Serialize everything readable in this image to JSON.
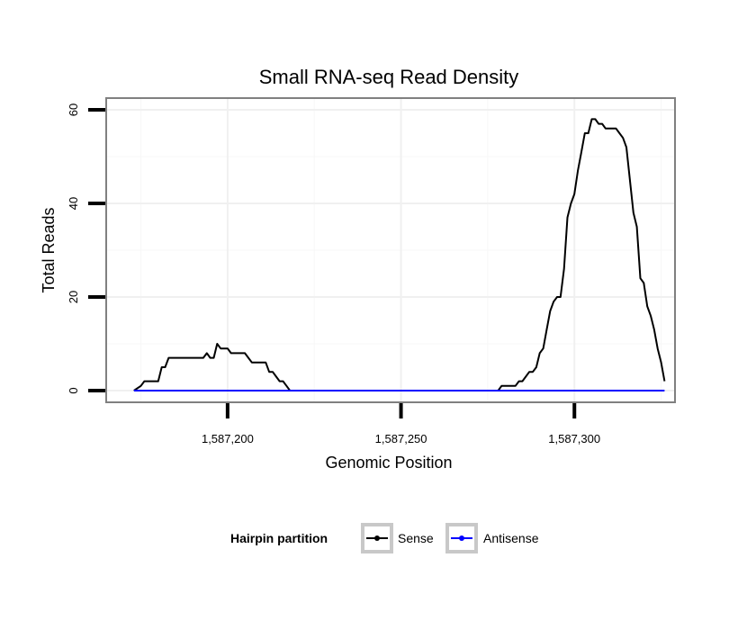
{
  "chart_data": {
    "type": "line",
    "title": "Small RNA-seq Read Density",
    "xlabel": "Genomic Position",
    "ylabel": "Total Reads",
    "xlim": [
      1587165,
      1587329
    ],
    "ylim": [
      -2.5,
      62.5
    ],
    "xticks": [
      {
        "value": 1587200,
        "label": "1,587,200"
      },
      {
        "value": 1587250,
        "label": "1,587,250"
      },
      {
        "value": 1587300,
        "label": "1,587,300"
      }
    ],
    "yticks": [
      {
        "value": 0,
        "label": "0"
      },
      {
        "value": 20,
        "label": "20"
      },
      {
        "value": 40,
        "label": "40"
      },
      {
        "value": 60,
        "label": "60"
      }
    ],
    "grid": true,
    "legend": {
      "title": "Hairpin partition",
      "position": "bottom",
      "entries": [
        "Sense",
        "Antisense"
      ]
    },
    "series": [
      {
        "name": "Sense",
        "color": "#000000",
        "x": [
          1587173,
          1587175,
          1587176,
          1587177,
          1587178,
          1587179,
          1587180,
          1587181,
          1587182,
          1587183,
          1587184,
          1587185,
          1587186,
          1587187,
          1587188,
          1587189,
          1587190,
          1587191,
          1587192,
          1587193,
          1587194,
          1587195,
          1587196,
          1587197,
          1587198,
          1587199,
          1587200,
          1587201,
          1587202,
          1587203,
          1587204,
          1587205,
          1587206,
          1587207,
          1587208,
          1587209,
          1587210,
          1587211,
          1587212,
          1587213,
          1587214,
          1587215,
          1587216,
          1587217,
          1587218,
          1587219,
          1587220,
          1587221,
          1587250,
          1587278,
          1587279,
          1587280,
          1587281,
          1587282,
          1587283,
          1587284,
          1587285,
          1587286,
          1587287,
          1587288,
          1587289,
          1587290,
          1587291,
          1587292,
          1587293,
          1587294,
          1587295,
          1587296,
          1587297,
          1587298,
          1587299,
          1587300,
          1587301,
          1587302,
          1587303,
          1587304,
          1587305,
          1587306,
          1587307,
          1587308,
          1587309,
          1587310,
          1587311,
          1587312,
          1587313,
          1587314,
          1587315,
          1587316,
          1587317,
          1587318,
          1587319,
          1587320,
          1587321,
          1587322,
          1587323,
          1587324,
          1587325,
          1587326
        ],
        "values": [
          0,
          1,
          2,
          2,
          2,
          2,
          2,
          5,
          5,
          7,
          7,
          7,
          7,
          7,
          7,
          7,
          7,
          7,
          7,
          7,
          8,
          7,
          7,
          10,
          9,
          9,
          9,
          8,
          8,
          8,
          8,
          8,
          7,
          6,
          6,
          6,
          6,
          6,
          4,
          4,
          3,
          2,
          2,
          1,
          0,
          0,
          0,
          0,
          0,
          0,
          1,
          1,
          1,
          1,
          1,
          2,
          2,
          3,
          4,
          4,
          5,
          8,
          9,
          13,
          17,
          19,
          20,
          20,
          26,
          37,
          40,
          42,
          47,
          51,
          55,
          55,
          58,
          58,
          57,
          57,
          56,
          56,
          56,
          56,
          55,
          54,
          52,
          45,
          38,
          35,
          24,
          23,
          18,
          16,
          13,
          9,
          6,
          2
        ]
      },
      {
        "name": "Antisense",
        "color": "#0000ff",
        "x": [
          1587173,
          1587326
        ],
        "values": [
          0,
          0
        ]
      }
    ]
  }
}
